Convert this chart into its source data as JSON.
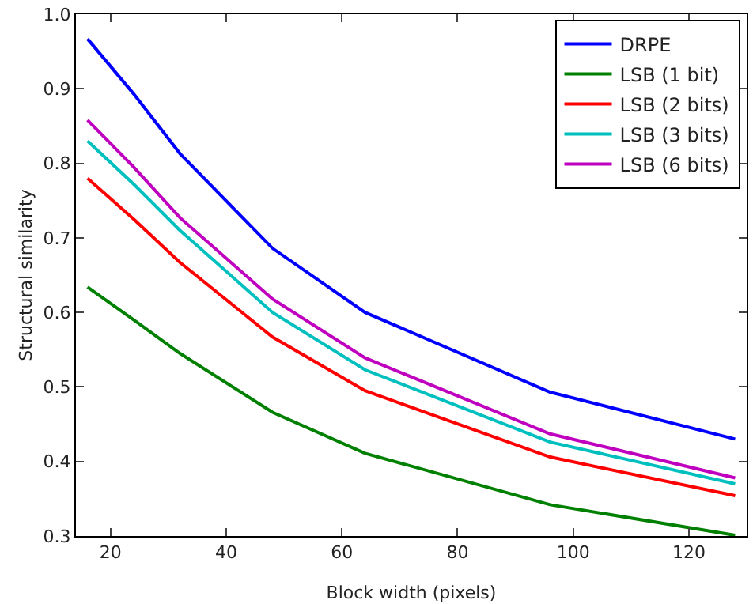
{
  "chart_data": {
    "type": "line",
    "xlabel": "Block width (pixels)",
    "ylabel": "Structural similarity",
    "x": [
      16,
      24,
      32,
      48,
      64,
      96,
      128
    ],
    "series": [
      {
        "name": "DRPE",
        "color": "#0000ff",
        "values": [
          0.967,
          0.893,
          0.813,
          0.686,
          0.6,
          0.493,
          0.43
        ]
      },
      {
        "name": "LSB (1 bit)",
        "color": "#008000",
        "values": [
          0.634,
          0.59,
          0.545,
          0.466,
          0.411,
          0.342,
          0.301
        ]
      },
      {
        "name": "LSB (2 bits)",
        "color": "#ff0000",
        "values": [
          0.78,
          0.725,
          0.667,
          0.567,
          0.495,
          0.406,
          0.354
        ]
      },
      {
        "name": "LSB (3 bits)",
        "color": "#00bfbf",
        "values": [
          0.83,
          0.772,
          0.71,
          0.6,
          0.523,
          0.426,
          0.37
        ]
      },
      {
        "name": "LSB (6 bits)",
        "color": "#bf00bf",
        "values": [
          0.858,
          0.795,
          0.727,
          0.618,
          0.539,
          0.437,
          0.378
        ]
      }
    ],
    "xlim": [
      14,
      130
    ],
    "xticks": [
      20,
      40,
      60,
      80,
      100,
      120
    ],
    "ylim": [
      0.3,
      1.0
    ],
    "yticks": [
      {
        "value": 0.3,
        "label": "0.3"
      },
      {
        "value": 0.4,
        "label": "0.4"
      },
      {
        "value": 0.5,
        "label": "0.5"
      },
      {
        "value": 0.6,
        "label": "0.6"
      },
      {
        "value": 0.7,
        "label": "0.7"
      },
      {
        "value": 0.8,
        "label": "0.8"
      },
      {
        "value": 0.9,
        "label": "0.9"
      },
      {
        "value": 1.0,
        "label": "1.0"
      }
    ],
    "legend": "top right",
    "marker": "none",
    "line_style": "solid"
  }
}
